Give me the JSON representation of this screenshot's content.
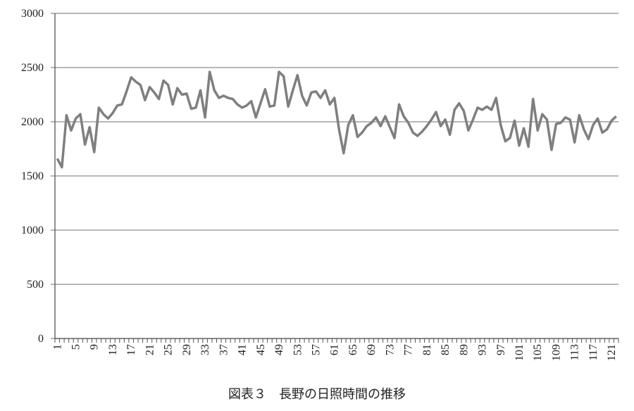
{
  "chart_data": {
    "type": "line",
    "title": "図表３　長野の日照時間の推移",
    "categories": [
      "1",
      null,
      null,
      null,
      "5",
      null,
      null,
      null,
      "9",
      null,
      null,
      null,
      "13",
      null,
      null,
      null,
      "17",
      null,
      null,
      null,
      "21",
      null,
      null,
      null,
      "25",
      null,
      null,
      null,
      "29",
      null,
      null,
      null,
      "33",
      null,
      null,
      null,
      "37",
      null,
      null,
      null,
      "41",
      null,
      null,
      null,
      "45",
      null,
      null,
      null,
      "49",
      null,
      null,
      null,
      "53",
      null,
      null,
      null,
      "57",
      null,
      null,
      null,
      "61",
      null,
      null,
      null,
      "65",
      null,
      null,
      null,
      "69",
      null,
      null,
      null,
      "73",
      null,
      null,
      null,
      "77",
      null,
      null,
      null,
      "81",
      null,
      null,
      null,
      "85",
      null,
      null,
      null,
      "89",
      null,
      null,
      null,
      "93",
      null,
      null,
      null,
      "97",
      null,
      null,
      null,
      "101",
      null,
      null,
      null,
      "105",
      null,
      null,
      null,
      "109",
      null,
      null,
      null,
      "113",
      null,
      null,
      null,
      "117",
      null,
      null,
      null,
      "121",
      null
    ],
    "series": [
      {
        "color": "#7f7f7f",
        "values": [
          1660,
          1580,
          2060,
          1920,
          2030,
          2070,
          1790,
          1950,
          1720,
          2130,
          2070,
          2030,
          2080,
          2150,
          2160,
          2280,
          2410,
          2370,
          2340,
          2200,
          2320,
          2270,
          2210,
          2380,
          2340,
          2160,
          2310,
          2250,
          2260,
          2120,
          2130,
          2290,
          2040,
          2460,
          2290,
          2220,
          2240,
          2220,
          2210,
          2160,
          2130,
          2150,
          2190,
          2040,
          2170,
          2300,
          2140,
          2150,
          2460,
          2420,
          2140,
          2290,
          2430,
          2240,
          2150,
          2270,
          2280,
          2220,
          2290,
          2160,
          2220,
          1930,
          1710,
          1970,
          2060,
          1860,
          1900,
          1960,
          1990,
          2040,
          1960,
          2050,
          1950,
          1850,
          2160,
          2050,
          1990,
          1900,
          1870,
          1910,
          1960,
          2020,
          2090,
          1960,
          2020,
          1880,
          2110,
          2170,
          2100,
          1920,
          2020,
          2130,
          2110,
          2140,
          2110,
          2220,
          1970,
          1820,
          1850,
          2010,
          1780,
          1940,
          1770,
          2210,
          1920,
          2070,
          2020,
          1740,
          1980,
          1990,
          2040,
          2020,
          1810,
          2060,
          1930,
          1840,
          1970,
          2030,
          1900,
          1930,
          2010,
          2050
        ]
      }
    ],
    "ylim": [
      0,
      3000
    ],
    "yticks": [
      0,
      500,
      1000,
      1500,
      2000,
      2500,
      3000
    ],
    "grid": true
  }
}
